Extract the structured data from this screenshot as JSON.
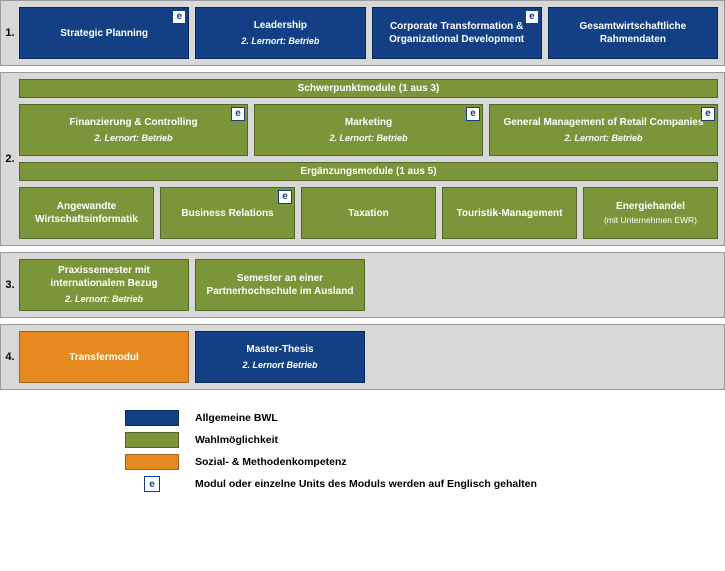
{
  "colors": {
    "blue": "#134085",
    "blue_border": "#0b2a57",
    "green": "#7b963a",
    "green_border": "#556628",
    "orange": "#e68a1f",
    "orange_border": "#a8641a",
    "grey_bg": "#d8d8d8",
    "grey_border": "#9a9a9a"
  },
  "rows": {
    "r1": {
      "num": "1.",
      "modules": [
        {
          "title": "Strategic Planning",
          "sub": "",
          "color": "blue",
          "e": true
        },
        {
          "title": "Leadership",
          "sub": "2. Lernort: Betrieb",
          "color": "blue",
          "e": false
        },
        {
          "title": "Corporate Transformation & Organizational Development",
          "sub": "",
          "color": "blue",
          "e": true
        },
        {
          "title": "Gesamtwirtschaftliche Rahmendaten",
          "sub": "",
          "color": "blue",
          "e": false
        }
      ]
    },
    "r2": {
      "num": "2.",
      "header1": "Schwerpunktmodule (1 aus 3)",
      "modules1": [
        {
          "title": "Finanzierung & Controlling",
          "sub": "2. Lernort: Betrieb",
          "color": "green",
          "e": true
        },
        {
          "title": "Marketing",
          "sub": "2. Lernort: Betrieb",
          "color": "green",
          "e": true
        },
        {
          "title": "General Management of Retail Companies",
          "sub": "2. Lernort: Betrieb",
          "color": "green",
          "e": true
        }
      ],
      "header2": "Ergänzungsmodule (1 aus 5)",
      "modules2": [
        {
          "title": "Angewandte Wirtschaftsinformatik",
          "sub": "",
          "color": "green",
          "e": false
        },
        {
          "title": "Business Relations",
          "sub": "",
          "color": "green",
          "e": true
        },
        {
          "title": "Taxation",
          "sub": "",
          "color": "green",
          "e": false
        },
        {
          "title": "Touristik-Management",
          "sub": "",
          "color": "green",
          "e": false
        },
        {
          "title": "Energiehandel",
          "sub": "",
          "note": "(mit Unternehmen EWR)",
          "color": "green",
          "e": false
        }
      ]
    },
    "r3": {
      "num": "3.",
      "modules": [
        {
          "title": "Praxissemester mit internationalem Bezug",
          "sub": "2. Lernort: Betrieb",
          "color": "green",
          "e": false
        },
        {
          "title": "Semester an einer Partnerhochschule im Ausland",
          "sub": "",
          "color": "green",
          "e": false
        }
      ]
    },
    "r4": {
      "num": "4.",
      "modules": [
        {
          "title": "Transfermodul",
          "sub": "",
          "color": "orange",
          "e": false
        },
        {
          "title": "Master-Thesis",
          "sub": "2. Lernort Betrieb",
          "color": "blue",
          "e": false
        }
      ]
    }
  },
  "legend": {
    "items": [
      {
        "type": "swatch",
        "color": "blue",
        "label": "Allgemeine BWL"
      },
      {
        "type": "swatch",
        "color": "green",
        "label": "Wahlmöglichkeit"
      },
      {
        "type": "swatch",
        "color": "orange",
        "label": "Sozial- & Methodenkompetenz"
      },
      {
        "type": "badge",
        "label": "Modul oder einzelne Units des Moduls werden auf Englisch gehalten"
      }
    ]
  },
  "e_glyph": "e"
}
